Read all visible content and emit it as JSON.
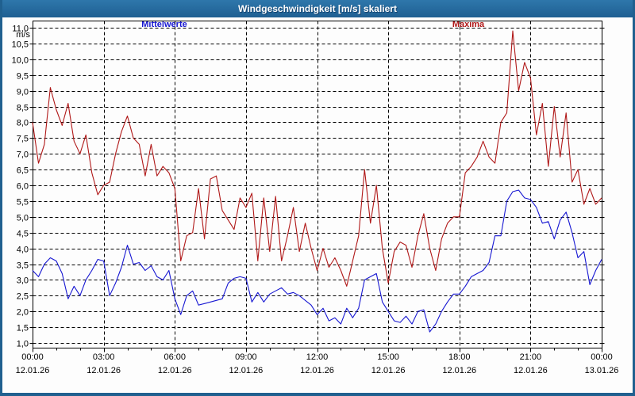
{
  "window": {
    "title": "Windgeschwindigkeit [m/s] skaliert"
  },
  "legend": {
    "items": [
      {
        "label": "Mittelwerte",
        "color": "#1717d2"
      },
      {
        "label": "Maxima",
        "color": "#b01818"
      }
    ]
  },
  "y_axis": {
    "unit_label": "m/s",
    "tick_labels": [
      "11,0",
      "10,5",
      "10,0",
      "9,5",
      "9,0",
      "8,5",
      "8,0",
      "7,5",
      "7,0",
      "6,5",
      "6,0",
      "5,5",
      "5,0",
      "4,5",
      "4,0",
      "3,5",
      "3,0",
      "2,5",
      "2,0",
      "1,5",
      "1,0"
    ]
  },
  "x_axis": {
    "ticks": [
      {
        "time": "00:00",
        "date": "12.01.26"
      },
      {
        "time": "03:00",
        "date": "12.01.26"
      },
      {
        "time": "06:00",
        "date": "12.01.26"
      },
      {
        "time": "09:00",
        "date": "12.01.26"
      },
      {
        "time": "12:00",
        "date": "12.01.26"
      },
      {
        "time": "15:00",
        "date": "12.01.26"
      },
      {
        "time": "18:00",
        "date": "12.01.26"
      },
      {
        "time": "21:00",
        "date": "12.01.26"
      },
      {
        "time": "00:00",
        "date": "13.01.26"
      }
    ]
  },
  "chart_data": {
    "type": "line",
    "title": "Windgeschwindigkeit [m/s] skaliert",
    "ylabel": "m/s",
    "ylim": [
      1.0,
      11.0
    ],
    "y_step": 0.5,
    "xlim_hours": [
      0,
      24
    ],
    "x_start_hour": 0,
    "x_step_hours": 0.25,
    "x_tick_interval_hours": 3,
    "grid": "dashed",
    "legend_position": "top",
    "series": [
      {
        "name": "Mittelwerte",
        "color": "#1717d2",
        "values": [
          3.3,
          3.1,
          3.5,
          3.7,
          3.6,
          3.2,
          2.4,
          2.8,
          2.5,
          3.0,
          3.3,
          3.65,
          3.6,
          2.5,
          2.9,
          3.4,
          4.1,
          3.5,
          3.55,
          3.3,
          3.45,
          3.1,
          3.0,
          3.3,
          2.4,
          1.9,
          2.5,
          2.65,
          2.2,
          2.25,
          2.3,
          2.35,
          2.4,
          2.9,
          3.05,
          3.1,
          3.05,
          2.3,
          2.6,
          2.3,
          2.55,
          2.65,
          2.75,
          2.55,
          2.6,
          2.5,
          2.35,
          2.2,
          1.9,
          2.1,
          1.7,
          1.8,
          1.6,
          2.1,
          1.8,
          2.1,
          3.0,
          3.1,
          3.2,
          2.3,
          2.0,
          1.7,
          1.65,
          1.85,
          1.6,
          2.0,
          2.05,
          1.35,
          1.6,
          2.0,
          2.3,
          2.55,
          2.55,
          2.8,
          3.1,
          3.2,
          3.3,
          3.55,
          4.4,
          4.4,
          5.5,
          5.8,
          5.85,
          5.6,
          5.55,
          5.3,
          4.8,
          4.85,
          4.3,
          4.9,
          5.15,
          4.5,
          3.7,
          3.9,
          2.85,
          3.3,
          3.65
        ]
      },
      {
        "name": "Maxima",
        "color": "#b01818",
        "values": [
          8.0,
          6.7,
          7.3,
          9.1,
          8.4,
          7.9,
          8.6,
          7.4,
          7.0,
          7.6,
          6.4,
          5.7,
          6.0,
          6.1,
          7.0,
          7.7,
          8.2,
          7.5,
          7.3,
          6.3,
          7.3,
          6.3,
          6.6,
          6.4,
          5.9,
          3.6,
          4.4,
          4.5,
          5.9,
          4.3,
          6.2,
          6.3,
          5.2,
          4.9,
          4.6,
          5.6,
          5.3,
          5.75,
          3.6,
          5.6,
          3.9,
          5.65,
          3.6,
          4.4,
          5.3,
          3.9,
          4.8,
          4.0,
          3.3,
          4.0,
          3.4,
          3.7,
          3.3,
          2.8,
          3.6,
          4.4,
          6.5,
          4.8,
          6.0,
          4.0,
          2.9,
          3.9,
          4.2,
          4.1,
          3.4,
          4.4,
          5.1,
          4.0,
          3.3,
          4.3,
          4.8,
          5.0,
          5.0,
          6.4,
          6.6,
          6.9,
          7.4,
          6.9,
          6.7,
          8.0,
          8.3,
          10.9,
          9.0,
          9.9,
          9.4,
          7.6,
          8.6,
          6.6,
          8.5,
          6.9,
          8.3,
          6.1,
          6.5,
          5.4,
          5.9,
          5.4,
          5.6
        ]
      }
    ]
  }
}
